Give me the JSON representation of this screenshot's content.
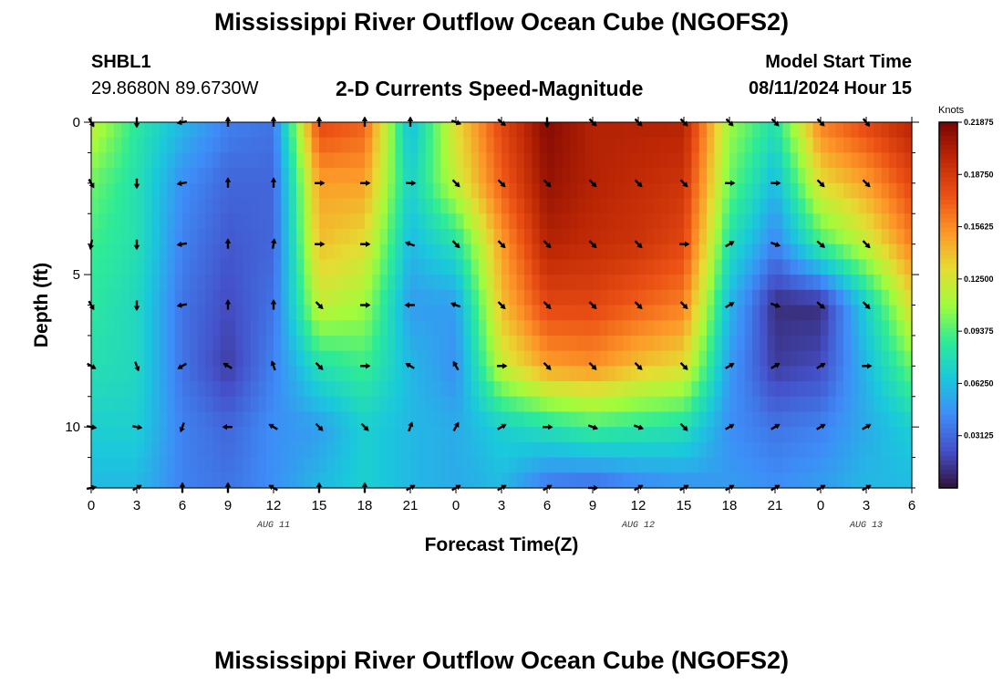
{
  "title": "Mississippi River Outflow Ocean Cube (NGOFS2)",
  "station": {
    "id": "SHBL1",
    "coords": "29.8680N  89.6730W"
  },
  "plot_title": "2-D Currents Speed-Magnitude",
  "model_start": {
    "label": "Model Start Time",
    "value": "08/11/2024 Hour 15"
  },
  "footer_title": "Mississippi River Outflow Ocean Cube (NGOFS2)",
  "chart_data": {
    "type": "heatmap",
    "xlabel": "Forecast Time(Z)",
    "ylabel": "Depth (ft)",
    "x_tick_labels": [
      "0",
      "3",
      "6",
      "9",
      "12",
      "15",
      "18",
      "21",
      "0",
      "3",
      "6",
      "9",
      "12",
      "15",
      "18",
      "21",
      "0",
      "3",
      "6"
    ],
    "x_tick_hours": [
      0,
      3,
      6,
      9,
      12,
      15,
      18,
      21,
      24,
      27,
      30,
      33,
      36,
      39,
      42,
      45,
      48,
      51,
      54
    ],
    "date_labels": [
      {
        "text": "AUG 11",
        "hour": 12
      },
      {
        "text": "AUG 12",
        "hour": 36
      },
      {
        "text": "AUG 13",
        "hour": 51
      }
    ],
    "x_range_hours": [
      0,
      54
    ],
    "y_tick_labels": [
      "0",
      "5",
      "10"
    ],
    "y_tick_values": [
      0,
      5,
      10
    ],
    "y_range": [
      0,
      12
    ],
    "colorbar": {
      "units": "Knots",
      "tick_labels": [
        "0.21875",
        "0.18750",
        "0.15625",
        "0.12500",
        "0.09375",
        "0.06250",
        "0.03125"
      ],
      "tick_values": [
        0.21875,
        0.1875,
        0.15625,
        0.125,
        0.09375,
        0.0625,
        0.03125
      ],
      "range": [
        0,
        0.21875
      ]
    },
    "grid_hours": [
      0,
      3,
      6,
      9,
      12,
      15,
      18,
      21,
      24,
      27,
      30,
      33,
      36,
      39,
      42,
      45,
      48,
      51,
      54
    ],
    "grid_depths": [
      0,
      2,
      4,
      6,
      8,
      10,
      12
    ],
    "speed": [
      [
        0.12,
        0.085,
        0.06,
        0.04,
        0.035,
        0.18,
        0.17,
        0.06,
        0.13,
        0.18,
        0.215,
        0.2,
        0.2,
        0.2,
        0.11,
        0.08,
        0.16,
        0.18,
        0.2
      ],
      [
        0.1,
        0.08,
        0.045,
        0.03,
        0.03,
        0.15,
        0.15,
        0.07,
        0.12,
        0.17,
        0.21,
        0.2,
        0.195,
        0.19,
        0.1,
        0.06,
        0.13,
        0.15,
        0.18
      ],
      [
        0.09,
        0.08,
        0.04,
        0.025,
        0.03,
        0.14,
        0.13,
        0.06,
        0.08,
        0.15,
        0.2,
        0.195,
        0.19,
        0.18,
        0.08,
        0.04,
        0.09,
        0.12,
        0.16
      ],
      [
        0.085,
        0.075,
        0.035,
        0.02,
        0.035,
        0.12,
        0.11,
        0.05,
        0.05,
        0.14,
        0.18,
        0.18,
        0.17,
        0.16,
        0.06,
        0.01,
        0.01,
        0.07,
        0.13
      ],
      [
        0.08,
        0.075,
        0.035,
        0.015,
        0.04,
        0.08,
        0.09,
        0.06,
        0.045,
        0.12,
        0.15,
        0.155,
        0.14,
        0.13,
        0.05,
        0.015,
        0.02,
        0.06,
        0.1
      ],
      [
        0.07,
        0.07,
        0.04,
        0.03,
        0.045,
        0.05,
        0.07,
        0.06,
        0.055,
        0.07,
        0.08,
        0.09,
        0.085,
        0.08,
        0.045,
        0.035,
        0.04,
        0.055,
        0.07
      ],
      [
        0.06,
        0.06,
        0.04,
        0.035,
        0.045,
        0.06,
        0.07,
        0.06,
        0.055,
        0.06,
        0.035,
        0.03,
        0.04,
        0.045,
        0.05,
        0.045,
        0.05,
        0.06,
        0.06
      ]
    ],
    "vector_hours": [
      0,
      3,
      6,
      9,
      12,
      15,
      18,
      21,
      24,
      27,
      30,
      33,
      36,
      39,
      42,
      45,
      48,
      51
    ],
    "vector_depths": [
      0,
      2,
      4,
      6,
      8,
      10,
      12
    ],
    "vector_directions_deg": [
      [
        150,
        180,
        260,
        0,
        0,
        0,
        0,
        0,
        110,
        130,
        180,
        135,
        135,
        135,
        135,
        135,
        135,
        140
      ],
      [
        150,
        180,
        260,
        0,
        0,
        90,
        90,
        90,
        135,
        135,
        135,
        135,
        135,
        135,
        90,
        90,
        135,
        135
      ],
      [
        190,
        180,
        260,
        0,
        10,
        90,
        90,
        290,
        135,
        135,
        135,
        135,
        135,
        90,
        60,
        110,
        130,
        135
      ],
      [
        150,
        180,
        260,
        0,
        0,
        135,
        90,
        270,
        290,
        135,
        135,
        135,
        135,
        135,
        60,
        110,
        130,
        135
      ],
      [
        120,
        160,
        240,
        300,
        340,
        135,
        90,
        300,
        330,
        90,
        135,
        135,
        135,
        135,
        60,
        60,
        60,
        90
      ],
      [
        100,
        100,
        200,
        270,
        300,
        135,
        135,
        20,
        30,
        60,
        90,
        110,
        110,
        135,
        60,
        60,
        60,
        60
      ],
      [
        80,
        60,
        0,
        0,
        300,
        0,
        0,
        60,
        60,
        60,
        60,
        90,
        60,
        60,
        60,
        60,
        60,
        60
      ]
    ]
  }
}
